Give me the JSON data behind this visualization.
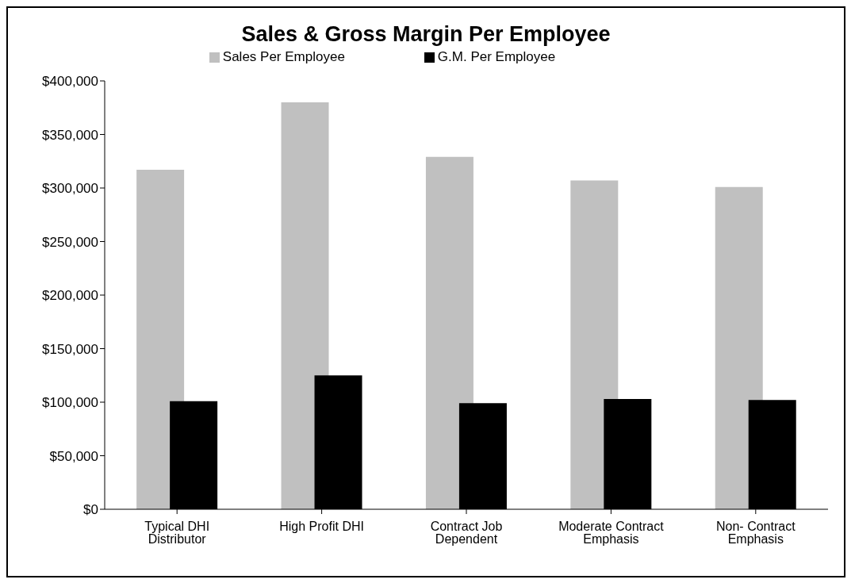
{
  "chart_data": {
    "type": "bar",
    "title": "Sales & Gross Margin Per Employee",
    "categories": [
      "Typical DHI Distributor",
      "High Profit DHI",
      "Contract Job Dependent",
      "Moderate Contract Emphasis",
      "Non- Contract Emphasis"
    ],
    "series": [
      {
        "name": "Sales Per Employee",
        "color": "#c0c0c0",
        "values": [
          317000,
          380000,
          329000,
          307000,
          301000
        ]
      },
      {
        "name": "G.M. Per Employee",
        "color": "#000000",
        "values": [
          101000,
          125000,
          99000,
          103000,
          102000
        ]
      }
    ],
    "ylim": [
      0,
      400000
    ],
    "yticks": [
      {
        "value": 0,
        "label": "$0"
      },
      {
        "value": 50000,
        "label": "$50,000"
      },
      {
        "value": 100000,
        "label": "$100,000"
      },
      {
        "value": 150000,
        "label": "$150,000"
      },
      {
        "value": 200000,
        "label": "$200,000"
      },
      {
        "value": 250000,
        "label": "$250,000"
      },
      {
        "value": 300000,
        "label": "$300,000"
      },
      {
        "value": 350000,
        "label": "$350,000"
      },
      {
        "value": 400000,
        "label": "$400,000"
      }
    ],
    "grid": false,
    "legend": "top"
  }
}
